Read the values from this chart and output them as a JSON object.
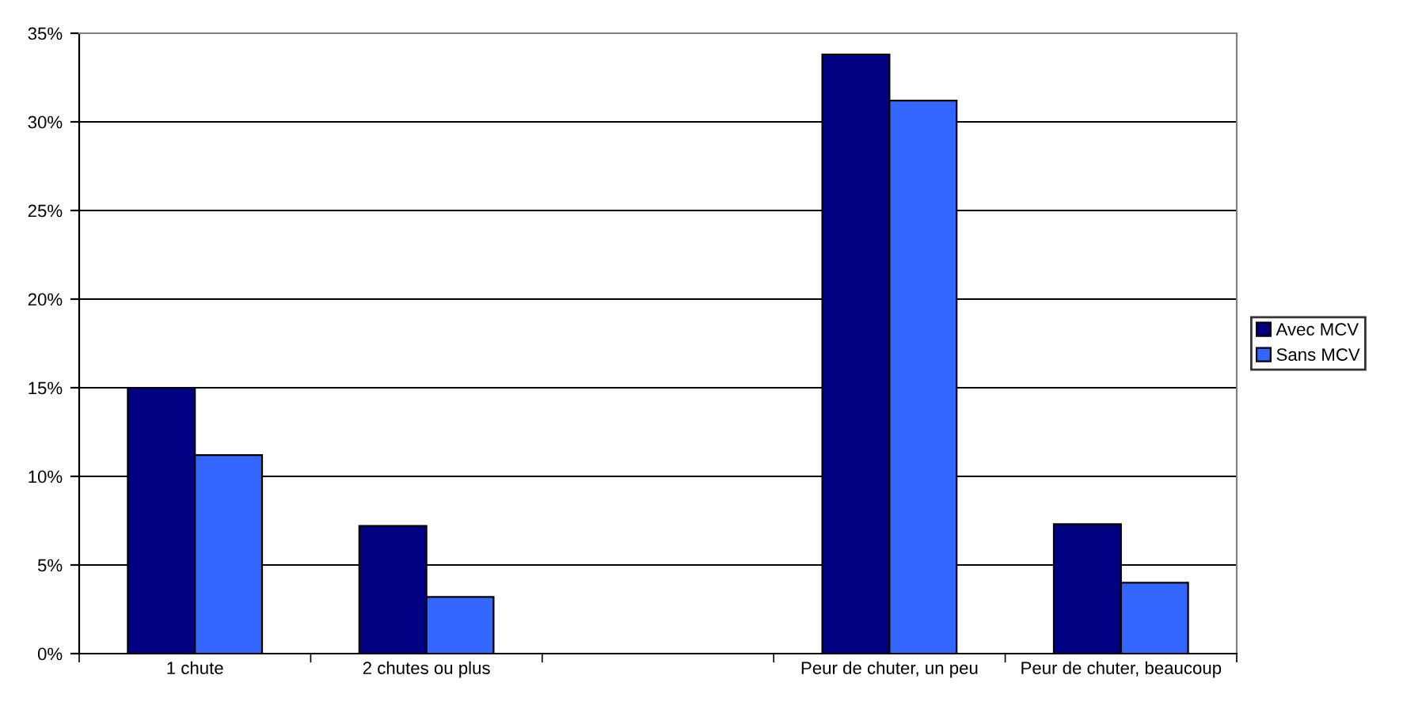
{
  "chart_data": {
    "type": "bar",
    "categories": [
      "1 chute",
      "2 chutes ou plus",
      null,
      "Peur de chuter, un peu",
      "Peur de chuter, beaucoup"
    ],
    "series": [
      {
        "name": "Avec MCV",
        "color": "#000080",
        "values": [
          15.0,
          7.2,
          null,
          33.8,
          7.3
        ]
      },
      {
        "name": "Sans MCV",
        "color": "#3366ff",
        "values": [
          11.2,
          3.2,
          null,
          31.2,
          4.0
        ]
      }
    ],
    "ylim": [
      0,
      35
    ],
    "yticks": [
      {
        "value": 0,
        "label": "0%"
      },
      {
        "value": 5,
        "label": "5%"
      },
      {
        "value": 10,
        "label": "10%"
      },
      {
        "value": 15,
        "label": "15%"
      },
      {
        "value": 20,
        "label": "20%"
      },
      {
        "value": 25,
        "label": "25%"
      },
      {
        "value": 30,
        "label": "30%"
      },
      {
        "value": 35,
        "label": "35%"
      }
    ],
    "grid": "y",
    "legend": "right"
  }
}
